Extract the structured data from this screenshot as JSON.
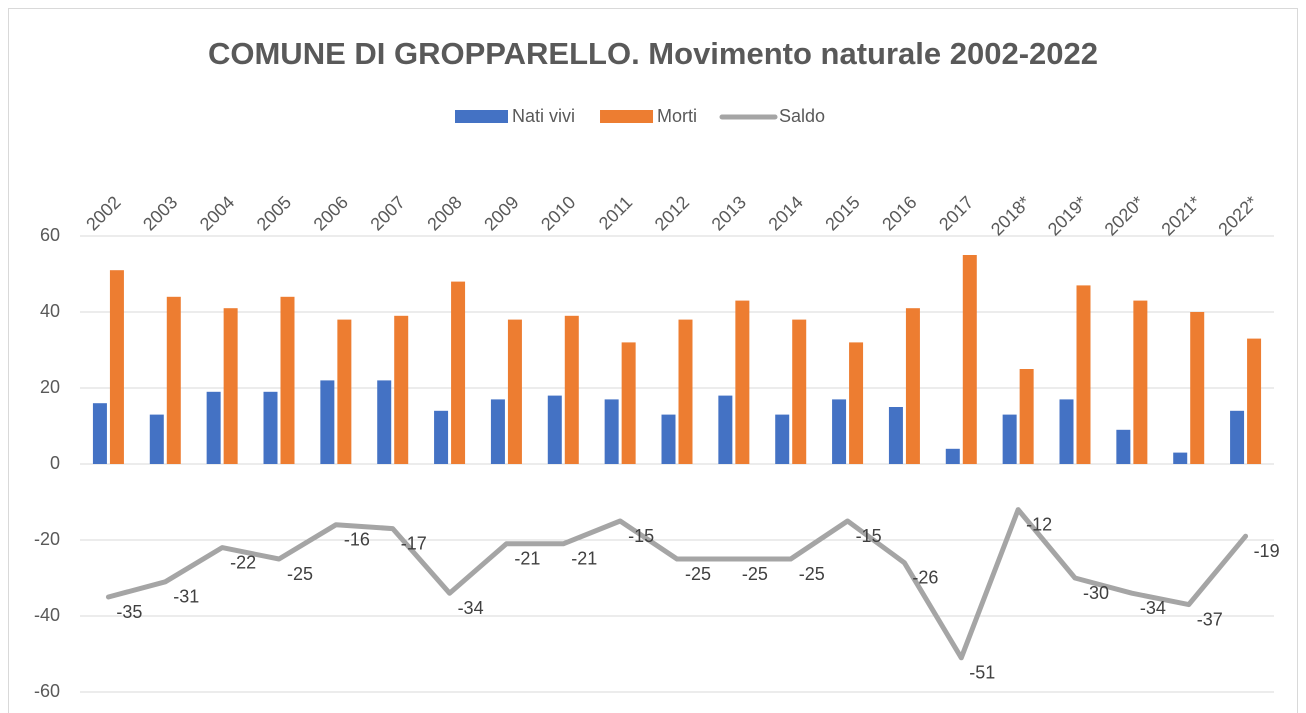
{
  "chart_data": {
    "type": "bar-line",
    "title": "COMUNE DI GROPPARELLO. Movimento naturale 2002-2022",
    "categories": [
      "2002",
      "2003",
      "2004",
      "2005",
      "2006",
      "2007",
      "2008",
      "2009",
      "2010",
      "2011",
      "2012",
      "2013",
      "2014",
      "2015",
      "2016",
      "2017",
      "2018*",
      "2019*",
      "2020*",
      "2021*",
      "2022*"
    ],
    "series": [
      {
        "name": "Nati vivi",
        "type": "bar",
        "color": "#4472c4",
        "values": [
          16,
          13,
          19,
          19,
          22,
          22,
          14,
          17,
          18,
          17,
          13,
          18,
          13,
          17,
          15,
          4,
          13,
          17,
          9,
          3,
          14
        ]
      },
      {
        "name": "Morti",
        "type": "bar",
        "color": "#ed7d31",
        "values": [
          51,
          44,
          41,
          44,
          38,
          39,
          48,
          38,
          39,
          32,
          38,
          43,
          38,
          32,
          41,
          55,
          25,
          47,
          43,
          40,
          33
        ]
      },
      {
        "name": "Saldo",
        "type": "line",
        "color": "#a5a5a5",
        "values": [
          -35,
          -31,
          -22,
          -25,
          -16,
          -17,
          -34,
          -21,
          -21,
          -15,
          -25,
          -25,
          -25,
          -15,
          -26,
          -51,
          -12,
          -30,
          -34,
          -37,
          -19
        ],
        "data_labels": true
      }
    ],
    "ylim": [
      -60,
      60
    ],
    "yticks": [
      -60,
      -40,
      -20,
      0,
      20,
      40,
      60
    ],
    "grid": true,
    "legend": "top"
  }
}
